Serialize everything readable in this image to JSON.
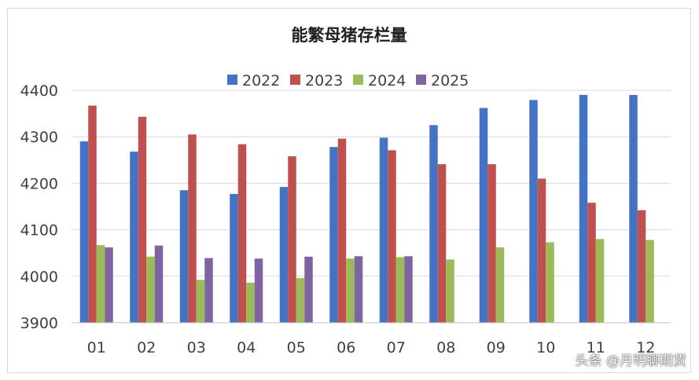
{
  "chart_data": {
    "type": "bar",
    "title": "能繁母猪存栏量",
    "categories": [
      "01",
      "02",
      "03",
      "04",
      "05",
      "06",
      "07",
      "08",
      "09",
      "10",
      "11",
      "12"
    ],
    "series": [
      {
        "name": "2022",
        "color": "#4472c4",
        "values": [
          4290,
          4268,
          4185,
          4177,
          4192,
          4278,
          4298,
          4325,
          4362,
          4379,
          4390,
          4390
        ]
      },
      {
        "name": "2023",
        "color": "#c0504d",
        "values": [
          4367,
          4343,
          4305,
          4284,
          4258,
          4296,
          4271,
          4241,
          4241,
          4210,
          4158,
          4142
        ]
      },
      {
        "name": "2024",
        "color": "#9bbb59",
        "values": [
          4067,
          4042,
          3992,
          3986,
          3996,
          4038,
          4041,
          4036,
          4062,
          4073,
          4080,
          4078
        ]
      },
      {
        "name": "2025",
        "color": "#8064a2",
        "values": [
          4062,
          4066,
          4039,
          4038,
          4042,
          4043,
          4043,
          null,
          null,
          null,
          null,
          null
        ]
      }
    ],
    "yticks": [
      "3900",
      "4000",
      "4100",
      "4200",
      "4300",
      "4400"
    ],
    "ylim": [
      3900,
      4400
    ],
    "grid": true,
    "legend_position": "top"
  },
  "watermark": "头条 @月明聊期货"
}
